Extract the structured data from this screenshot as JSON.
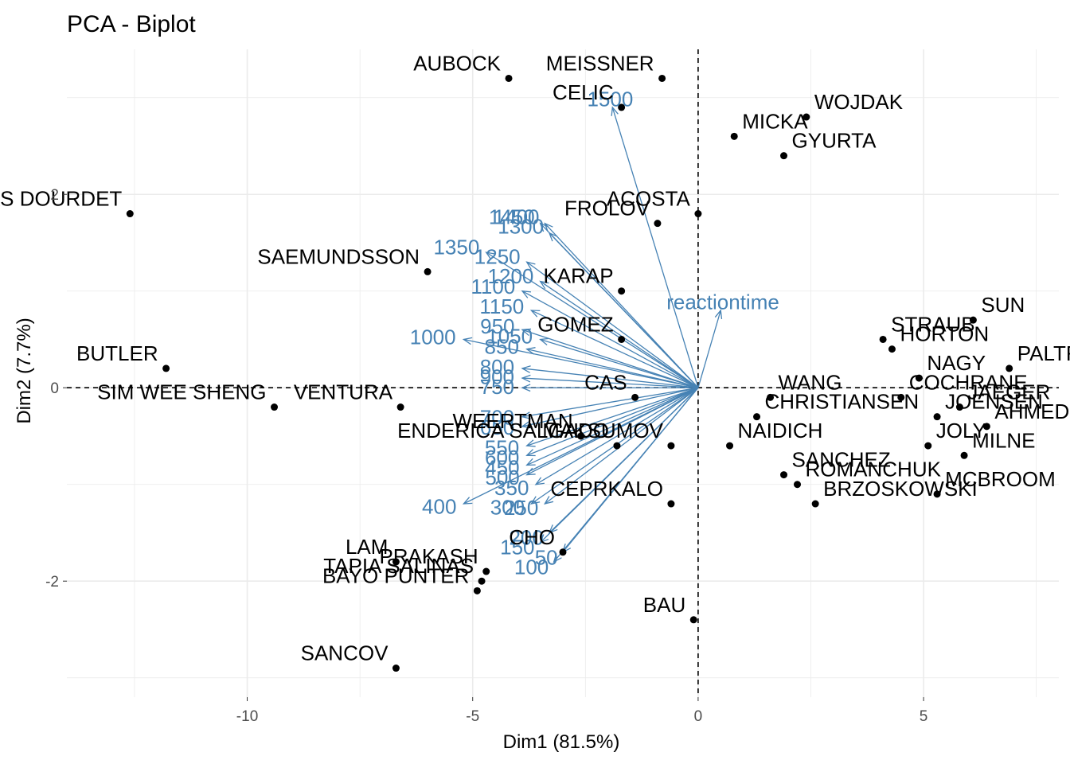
{
  "chart_data": {
    "type": "scatter",
    "title": "PCA - Biplot",
    "xlabel": "Dim1 (81.5%)",
    "ylabel": "Dim2 (7.7%)",
    "xlim": [
      -14,
      8
    ],
    "ylim": [
      -3.2,
      3.5
    ],
    "xticks": [
      -10,
      -5,
      0,
      5
    ],
    "yticks": [
      -2,
      0,
      2
    ],
    "grid": true,
    "colors": {
      "points": "#000000",
      "arrows": "#4682b4",
      "grid": "#ebebeb",
      "reference": "#000000"
    },
    "individuals": [
      {
        "name": "AUBOCK",
        "x": -4.2,
        "y": 3.2
      },
      {
        "name": "MEISSNER",
        "x": -0.8,
        "y": 3.2
      },
      {
        "name": "WOJDAK",
        "x": 2.4,
        "y": 2.8
      },
      {
        "name": "CELIC",
        "x": -1.7,
        "y": 2.9
      },
      {
        "name": "MICKA",
        "x": 0.8,
        "y": 2.6
      },
      {
        "name": "GYURTA",
        "x": 1.9,
        "y": 2.4
      },
      {
        "name": "ACOSTA",
        "x": 0.0,
        "y": 1.8
      },
      {
        "name": "ARIAS DOURDET",
        "x": -12.6,
        "y": 1.8
      },
      {
        "name": "FROLOV",
        "x": -0.9,
        "y": 1.7
      },
      {
        "name": "SAEMUNDSSON",
        "x": -6.0,
        "y": 1.2
      },
      {
        "name": "KARAP",
        "x": -1.7,
        "y": 1.0
      },
      {
        "name": "GOMEZ",
        "x": -1.7,
        "y": 0.5
      },
      {
        "name": "BUTLER",
        "x": -11.8,
        "y": 0.2
      },
      {
        "name": "SIM WEE SHENG",
        "x": -9.4,
        "y": -0.2
      },
      {
        "name": "VENTURA",
        "x": -6.6,
        "y": -0.2
      },
      {
        "name": "WEERTMAN",
        "x": -2.6,
        "y": -0.5
      },
      {
        "name": "ENDERICA SALGADO",
        "x": -1.8,
        "y": -0.6
      },
      {
        "name": "CAS",
        "x": -1.4,
        "y": -0.1
      },
      {
        "name": "WANG",
        "x": 1.6,
        "y": -0.1
      },
      {
        "name": "CHRISTIANSEN",
        "x": 1.3,
        "y": -0.3
      },
      {
        "name": "NAIDICH",
        "x": 0.7,
        "y": -0.6
      },
      {
        "name": "MAKSUMOV",
        "x": -0.6,
        "y": -0.6
      },
      {
        "name": "STRAUB",
        "x": 4.1,
        "y": 0.5
      },
      {
        "name": "SUN",
        "x": 6.1,
        "y": 0.7
      },
      {
        "name": "PALTRINIERI",
        "x": 6.9,
        "y": 0.2
      },
      {
        "name": "HORTON",
        "x": 4.3,
        "y": 0.4
      },
      {
        "name": "NAGY",
        "x": 4.9,
        "y": 0.1
      },
      {
        "name": "COCHRANE",
        "x": 4.5,
        "y": -0.1
      },
      {
        "name": "JAEGER",
        "x": 5.8,
        "y": -0.2
      },
      {
        "name": "JOENSEN",
        "x": 5.3,
        "y": -0.3
      },
      {
        "name": "AHMED",
        "x": 6.4,
        "y": -0.4
      },
      {
        "name": "JOLY",
        "x": 5.1,
        "y": -0.6
      },
      {
        "name": "MILNE",
        "x": 5.9,
        "y": -0.7
      },
      {
        "name": "ROMANCHUK",
        "x": 2.2,
        "y": -1.0
      },
      {
        "name": "SANCHEZ",
        "x": 1.9,
        "y": -0.9
      },
      {
        "name": "BRZOSKOWSKI",
        "x": 2.6,
        "y": -1.2
      },
      {
        "name": "MCBROOM",
        "x": 5.3,
        "y": -1.1
      },
      {
        "name": "CEPRKALO",
        "x": -0.6,
        "y": -1.2
      },
      {
        "name": "CHO",
        "x": -3.0,
        "y": -1.7
      },
      {
        "name": "PRAKASH",
        "x": -4.7,
        "y": -1.9
      },
      {
        "name": "TAPIA SALINAS",
        "x": -4.8,
        "y": -2.0
      },
      {
        "name": "LAM",
        "x": -6.7,
        "y": -1.8
      },
      {
        "name": "BAYO PUNTER",
        "x": -4.9,
        "y": -2.1
      },
      {
        "name": "BAU",
        "x": -0.1,
        "y": -2.4
      },
      {
        "name": "SANCOV",
        "x": -6.7,
        "y": -2.9
      }
    ],
    "variables": [
      {
        "name": "1500",
        "x": -1.9,
        "y": 2.9
      },
      {
        "name": "1450",
        "x": -3.5,
        "y": 1.7
      },
      {
        "name": "1400",
        "x": -3.4,
        "y": 1.7
      },
      {
        "name": "1350",
        "x": -4.7,
        "y": 1.4
      },
      {
        "name": "1300",
        "x": -3.3,
        "y": 1.6
      },
      {
        "name": "1250",
        "x": -3.8,
        "y": 1.3
      },
      {
        "name": "1200",
        "x": -3.5,
        "y": 1.1
      },
      {
        "name": "1150",
        "x": -3.7,
        "y": 0.8
      },
      {
        "name": "1100",
        "x": -3.9,
        "y": 1.0
      },
      {
        "name": "1050",
        "x": -3.5,
        "y": 0.5
      },
      {
        "name": "1000",
        "x": -5.2,
        "y": 0.5
      },
      {
        "name": "950",
        "x": -3.9,
        "y": 0.6
      },
      {
        "name": "850",
        "x": -3.8,
        "y": 0.4
      },
      {
        "name": "900",
        "x": -3.9,
        "y": 0.1
      },
      {
        "name": "800",
        "x": -3.9,
        "y": 0.2
      },
      {
        "name": "750",
        "x": -3.9,
        "y": 0.0
      },
      {
        "name": "700",
        "x": -3.9,
        "y": -0.3
      },
      {
        "name": "650",
        "x": -3.9,
        "y": -0.4
      },
      {
        "name": "600",
        "x": -3.8,
        "y": -0.7
      },
      {
        "name": "550",
        "x": -3.8,
        "y": -0.6
      },
      {
        "name": "500",
        "x": -3.8,
        "y": -0.9
      },
      {
        "name": "450",
        "x": -3.8,
        "y": -0.8
      },
      {
        "name": "400",
        "x": -5.2,
        "y": -1.2
      },
      {
        "name": "350",
        "x": -3.6,
        "y": -1.0
      },
      {
        "name": "300",
        "x": -3.7,
        "y": -1.2
      },
      {
        "name": "250",
        "x": -3.4,
        "y": -1.2
      },
      {
        "name": "200",
        "x": -3.3,
        "y": -1.5
      },
      {
        "name": "150",
        "x": -3.5,
        "y": -1.6
      },
      {
        "name": "100",
        "x": -3.2,
        "y": -1.8
      },
      {
        "name": "50",
        "x": -3.0,
        "y": -1.7
      },
      {
        "name": "reactiontime",
        "x": 0.5,
        "y": 0.8
      }
    ]
  }
}
